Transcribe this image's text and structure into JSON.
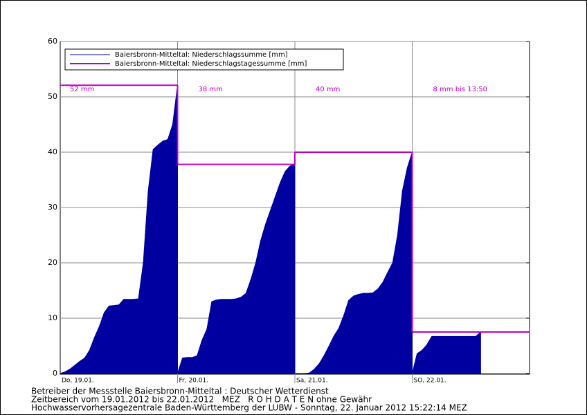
{
  "chart_data": {
    "type": "step-area",
    "categories": [
      "Do, 19.01.",
      "Fr, 20.01.",
      "Sa, 21.01.",
      "SO, 22.01."
    ],
    "series": [
      {
        "name": "Baiersbronn-Mitteltal: Niederschlagssumme [mm]",
        "color": "#0000a0",
        "values": [
          [
            0.3,
            0.8,
            1.5,
            2.2,
            2.8,
            4.2,
            6.5,
            8.5,
            11,
            12.2,
            12.3,
            12.4,
            13.4,
            13.4,
            13.4,
            13.5,
            20,
            33,
            40.5,
            41.3,
            42,
            42.3,
            45,
            52.1
          ],
          [
            2.8,
            2.9,
            2.9,
            3.2,
            6,
            8,
            13,
            13.3,
            13.4,
            13.4,
            13.4,
            13.5,
            13.8,
            14.5,
            17,
            20,
            24,
            27,
            29.5,
            32,
            34.5,
            36.5,
            37.5,
            37.8
          ],
          [
            0,
            0,
            0.1,
            0.8,
            1.8,
            3.3,
            5,
            6.8,
            8.2,
            10.5,
            13.2,
            14,
            14.3,
            14.5,
            14.5,
            14.6,
            15.3,
            16.5,
            18.3,
            20,
            25,
            33,
            37.2,
            40
          ],
          [
            3.6,
            4.2,
            5.2,
            6.7,
            6.7,
            6.7,
            6.7,
            6.7,
            6.7,
            6.7,
            6.7,
            6.7,
            6.7,
            7.5,
            null,
            null,
            null,
            null,
            null,
            null,
            null,
            null,
            null,
            null
          ]
        ]
      },
      {
        "name": "Baiersbronn-Mitteltal: Niederschlagstagessumme [mm]",
        "color": "#c000c0",
        "values": [
          52.1,
          37.8,
          40,
          7.5
        ],
        "value_labels": [
          "52 mm",
          "38 mm",
          "40 mm",
          "8 mm bis 13:50"
        ]
      }
    ],
    "ylim": [
      0,
      60
    ],
    "yticks": [
      0,
      10,
      20,
      30,
      40,
      50,
      60
    ],
    "grid": true,
    "legend": "top-left"
  },
  "footer": [
    "Betreiber der Messstelle Baiersbronn-Mitteltal : Deutscher Wetterdienst",
    "Zeitbereich vom 19.01.2012 bis 22.01.2012   MEZ   R O H D A T E N ohne Gewähr",
    "Hochwasservorhersagezentrale Baden-Württemberg der LUBW - Sonntag, 22. Januar 2012 15:22:14 MEZ"
  ]
}
